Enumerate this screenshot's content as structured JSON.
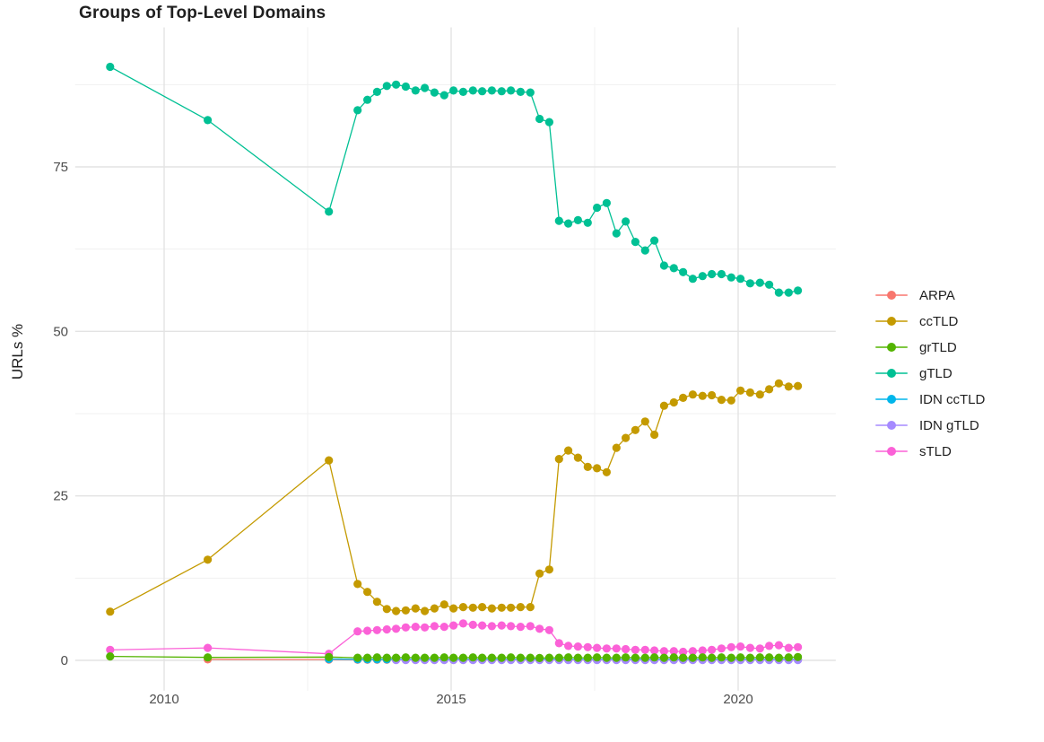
{
  "title": "Groups of Top-Level Domains",
  "axes": {
    "y_label": "URLs %",
    "x_label": "",
    "y_ticks": [
      0,
      25,
      50,
      75
    ],
    "y_minor_ticks": [
      12.5,
      37.5,
      62.5,
      87.5
    ],
    "x_ticks": [
      2010,
      2015,
      2020
    ],
    "x_minor_ticks": [
      2012.5,
      2017.5
    ],
    "tick_label_color": "#4d4d4d",
    "grid_major_color": "#e3e3e3",
    "grid_minor_color": "#f0f0f0"
  },
  "chart_data": {
    "type": "line",
    "title": "Groups of Top-Level Domains",
    "xlabel": "",
    "ylabel": "URLs %",
    "xlim": [
      2008.45,
      2021.7
    ],
    "ylim": [
      -4.6,
      96.2
    ],
    "grid": true,
    "legend_position": "right",
    "x": [
      2009.06,
      2010.76,
      2012.87,
      2013.37,
      2013.54,
      2013.71,
      2013.88,
      2014.04,
      2014.21,
      2014.38,
      2014.54,
      2014.71,
      2014.88,
      2015.04,
      2015.21,
      2015.38,
      2015.54,
      2015.71,
      2015.88,
      2016.04,
      2016.21,
      2016.38,
      2016.54,
      2016.71,
      2016.88,
      2017.04,
      2017.21,
      2017.38,
      2017.54,
      2017.71,
      2017.88,
      2018.04,
      2018.21,
      2018.38,
      2018.54,
      2018.71,
      2018.88,
      2019.04,
      2019.21,
      2019.38,
      2019.54,
      2019.71,
      2019.88,
      2020.04,
      2020.21,
      2020.38,
      2020.54,
      2020.71,
      2020.88,
      2021.04
    ],
    "series": [
      {
        "name": "ARPA",
        "color": "#F8766D",
        "values": [
          null,
          0.15,
          0.12,
          0.1,
          0.1,
          0.1,
          0.1,
          0.1,
          0.1,
          0.1,
          0.1,
          0.1,
          0.1,
          0.1,
          0.1,
          0.1,
          0.1,
          0.1,
          0.1,
          0.1,
          0.1,
          0.1,
          0.1,
          0.1,
          0.1,
          0.1,
          0.1,
          0.1,
          0.1,
          0.1,
          0.1,
          0.1,
          0.1,
          0.1,
          0.1,
          0.1,
          0.1,
          0.1,
          0.1,
          0.1,
          0.1,
          0.1,
          0.1,
          0.1,
          0.1,
          0.1,
          0.1,
          0.1,
          0.1,
          0.1
        ]
      },
      {
        "name": "ccTLD",
        "color": "#C49A00",
        "values": [
          7.4,
          15.3,
          30.4,
          11.6,
          10.4,
          8.9,
          7.8,
          7.5,
          7.6,
          7.9,
          7.5,
          7.9,
          8.5,
          7.9,
          8.1,
          8.0,
          8.1,
          7.9,
          8.0,
          8.0,
          8.1,
          8.1,
          13.2,
          13.8,
          30.6,
          31.9,
          30.8,
          29.4,
          29.2,
          28.6,
          32.3,
          33.8,
          35.0,
          36.3,
          34.3,
          38.7,
          39.2,
          39.9,
          40.4,
          40.2,
          40.3,
          39.6,
          39.5,
          41.0,
          40.7,
          40.4,
          41.2,
          42.1,
          41.6,
          41.7
        ]
      },
      {
        "name": "grTLD",
        "color": "#53B400",
        "values": [
          0.6,
          0.45,
          0.5,
          0.4,
          0.4,
          0.45,
          0.4,
          0.4,
          0.45,
          0.4,
          0.4,
          0.4,
          0.45,
          0.4,
          0.4,
          0.45,
          0.4,
          0.4,
          0.4,
          0.45,
          0.4,
          0.4,
          0.35,
          0.4,
          0.4,
          0.45,
          0.4,
          0.4,
          0.45,
          0.4,
          0.4,
          0.45,
          0.4,
          0.4,
          0.45,
          0.4,
          0.45,
          0.4,
          0.4,
          0.45,
          0.4,
          0.45,
          0.4,
          0.45,
          0.4,
          0.45,
          0.45,
          0.4,
          0.45,
          0.5
        ]
      },
      {
        "name": "gTLD",
        "color": "#00C094",
        "values": [
          90.2,
          82.1,
          68.2,
          83.6,
          85.2,
          86.4,
          87.3,
          87.5,
          87.2,
          86.6,
          87.0,
          86.3,
          85.9,
          86.6,
          86.4,
          86.6,
          86.5,
          86.6,
          86.5,
          86.6,
          86.4,
          86.3,
          82.3,
          81.8,
          66.8,
          66.4,
          66.9,
          66.5,
          68.8,
          69.5,
          64.9,
          66.7,
          63.6,
          62.3,
          63.8,
          60.0,
          59.6,
          59.0,
          58.0,
          58.4,
          58.7,
          58.7,
          58.2,
          58.0,
          57.3,
          57.4,
          57.1,
          55.9,
          55.9,
          56.2
        ]
      },
      {
        "name": "IDN ccTLD",
        "color": "#00B6EB",
        "values": [
          null,
          null,
          0.2,
          0.15,
          0.15,
          0.15,
          0.15,
          0.15,
          0.15,
          0.15,
          0.15,
          0.15,
          0.15,
          0.15,
          0.15,
          0.15,
          0.15,
          0.15,
          0.15,
          0.15,
          0.15,
          0.15,
          0.15,
          0.15,
          0.15,
          0.15,
          0.15,
          0.15,
          0.15,
          0.15,
          0.15,
          0.15,
          0.15,
          0.15,
          0.15,
          0.15,
          0.15,
          0.15,
          0.15,
          0.15,
          0.15,
          0.15,
          0.15,
          0.15,
          0.15,
          0.15,
          0.15,
          0.15,
          0.15,
          0.15
        ]
      },
      {
        "name": "IDN gTLD",
        "color": "#A58AFF",
        "values": [
          null,
          null,
          null,
          null,
          null,
          null,
          null,
          0.05,
          0.05,
          0.05,
          0.05,
          0.05,
          0.05,
          0.05,
          0.05,
          0.05,
          0.05,
          0.05,
          0.05,
          0.05,
          0.05,
          0.05,
          0.05,
          0.05,
          0.05,
          0.05,
          0.05,
          0.05,
          0.05,
          0.05,
          0.05,
          0.05,
          0.05,
          0.05,
          0.05,
          0.05,
          0.05,
          0.05,
          0.05,
          0.05,
          0.05,
          0.05,
          0.05,
          0.05,
          0.05,
          0.05,
          0.05,
          0.05,
          0.05,
          0.05
        ]
      },
      {
        "name": "sTLD",
        "color": "#FB61D7",
        "values": [
          1.6,
          1.9,
          1.0,
          4.4,
          4.5,
          4.6,
          4.7,
          4.8,
          5.0,
          5.1,
          5.0,
          5.2,
          5.1,
          5.3,
          5.6,
          5.4,
          5.3,
          5.2,
          5.3,
          5.2,
          5.1,
          5.2,
          4.8,
          4.6,
          2.6,
          2.2,
          2.1,
          2.0,
          1.9,
          1.8,
          1.8,
          1.7,
          1.6,
          1.6,
          1.5,
          1.4,
          1.4,
          1.3,
          1.4,
          1.5,
          1.6,
          1.8,
          2.0,
          2.1,
          1.9,
          1.8,
          2.2,
          2.3,
          1.9,
          2.0
        ]
      }
    ],
    "draw_order": [
      "ARPA",
      "IDN ccTLD",
      "IDN gTLD",
      "sTLD",
      "ccTLD",
      "gTLD",
      "grTLD"
    ]
  }
}
